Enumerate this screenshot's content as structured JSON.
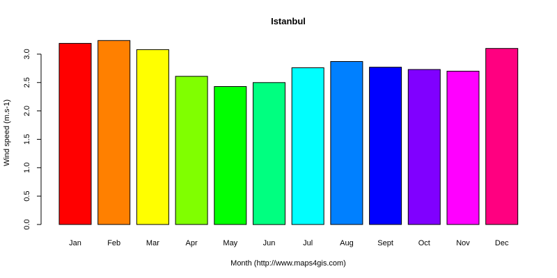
{
  "chart_data": {
    "type": "bar",
    "title": "Istanbul",
    "xlabel": "Month (http://www.maps4gis.com)",
    "ylabel": "Wind speed (m.s-1)",
    "categories": [
      "Jan",
      "Feb",
      "Mar",
      "Apr",
      "May",
      "Jun",
      "Jul",
      "Aug",
      "Sept",
      "Oct",
      "Nov",
      "Dec"
    ],
    "values": [
      3.19,
      3.24,
      3.08,
      2.61,
      2.43,
      2.5,
      2.76,
      2.87,
      2.77,
      2.73,
      2.7,
      3.1
    ],
    "colors": [
      "#FF0000",
      "#FF8000",
      "#FFFF00",
      "#80FF00",
      "#00FF00",
      "#00FF80",
      "#00FFFF",
      "#0080FF",
      "#0000FF",
      "#8000FF",
      "#FF00FF",
      "#FF0080"
    ],
    "ylim": [
      0,
      3.25
    ],
    "yticks": [
      "0.0",
      "0.5",
      "1.0",
      "1.5",
      "2.0",
      "2.5",
      "3.0"
    ],
    "grid": false,
    "legend": "none"
  }
}
